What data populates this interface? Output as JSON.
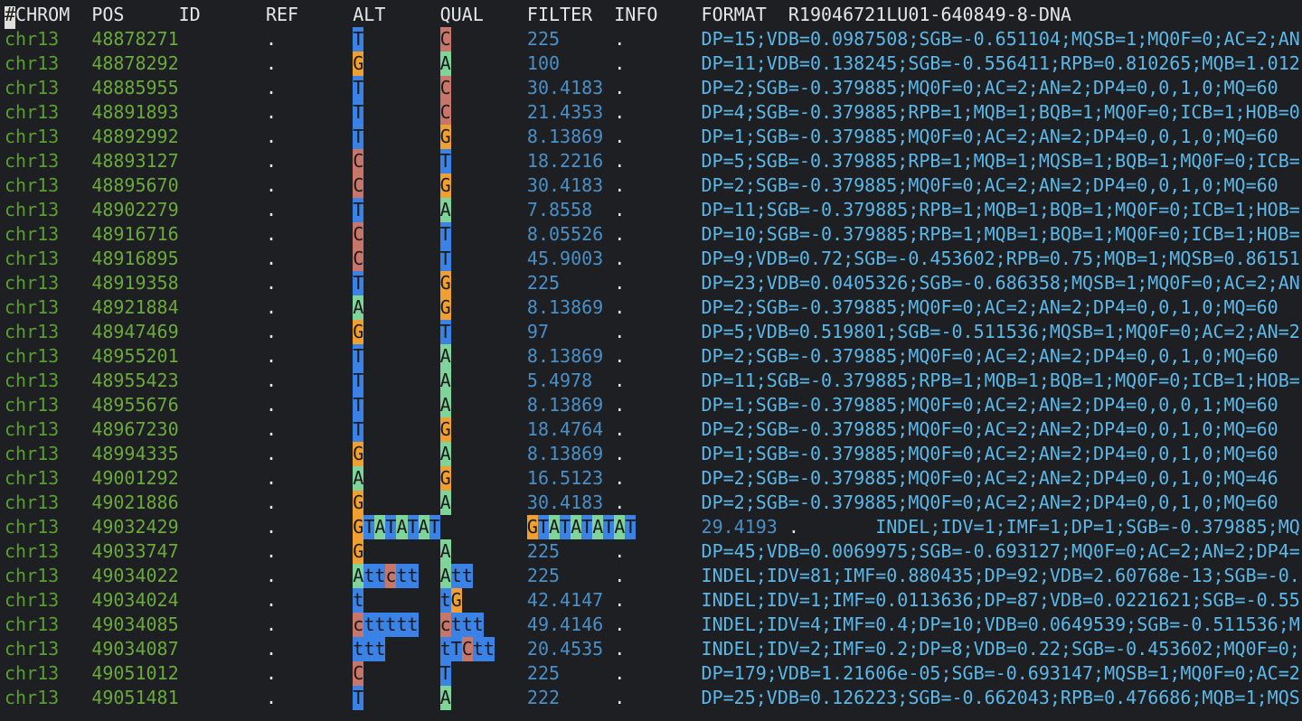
{
  "header": {
    "columns": [
      "#CHROM",
      "POS",
      "ID",
      "REF",
      "ALT",
      "QUAL",
      "FILTER",
      "INFO",
      "FORMAT",
      "R19046721LU01-640849-8-DNA"
    ]
  },
  "rows": [
    [
      "chr13",
      "48878271",
      ".",
      "T",
      "C",
      "225",
      ".",
      "DP=15;VDB=0.0987508;SGB=-0.651104;MQSB=1;MQ0F=0;AC=2;AN"
    ],
    [
      "chr13",
      "48878292",
      ".",
      "G",
      "A",
      "100",
      ".",
      "DP=11;VDB=0.138245;SGB=-0.556411;RPB=0.810265;MQB=1.012"
    ],
    [
      "chr13",
      "48885955",
      ".",
      "T",
      "C",
      "30.4183",
      ".",
      "DP=2;SGB=-0.379885;MQ0F=0;AC=2;AN=2;DP4=0,0,1,0;MQ=60"
    ],
    [
      "chr13",
      "48891893",
      ".",
      "T",
      "C",
      "21.4353",
      ".",
      "DP=4;SGB=-0.379885;RPB=1;MQB=1;BQB=1;MQ0F=0;ICB=1;HOB=0"
    ],
    [
      "chr13",
      "48892992",
      ".",
      "T",
      "G",
      "8.13869",
      ".",
      "DP=1;SGB=-0.379885;MQ0F=0;AC=2;AN=2;DP4=0,0,1,0;MQ=60"
    ],
    [
      "chr13",
      "48893127",
      ".",
      "C",
      "T",
      "18.2216",
      ".",
      "DP=5;SGB=-0.379885;RPB=1;MQB=1;MQSB=1;BQB=1;MQ0F=0;ICB="
    ],
    [
      "chr13",
      "48895670",
      ".",
      "C",
      "G",
      "30.4183",
      ".",
      "DP=2;SGB=-0.379885;MQ0F=0;AC=2;AN=2;DP4=0,0,1,0;MQ=60"
    ],
    [
      "chr13",
      "48902279",
      ".",
      "T",
      "A",
      "7.8558",
      ".",
      "DP=11;SGB=-0.379885;RPB=1;MQB=1;BQB=1;MQ0F=0;ICB=1;HOB="
    ],
    [
      "chr13",
      "48916716",
      ".",
      "C",
      "T",
      "8.05526",
      ".",
      "DP=10;SGB=-0.379885;RPB=1;MQB=1;BQB=1;MQ0F=0;ICB=1;HOB="
    ],
    [
      "chr13",
      "48916895",
      ".",
      "C",
      "T",
      "45.9003",
      ".",
      "DP=9;VDB=0.72;SGB=-0.453602;RPB=0.75;MQB=1;MQSB=0.86151"
    ],
    [
      "chr13",
      "48919358",
      ".",
      "T",
      "G",
      "225",
      ".",
      "DP=23;VDB=0.0405326;SGB=-0.686358;MQSB=1;MQ0F=0;AC=2;AN"
    ],
    [
      "chr13",
      "48921884",
      ".",
      "A",
      "G",
      "8.13869",
      ".",
      "DP=2;SGB=-0.379885;MQ0F=0;AC=2;AN=2;DP4=0,0,1,0;MQ=60"
    ],
    [
      "chr13",
      "48947469",
      ".",
      "G",
      "T",
      "97",
      ".",
      "DP=5;VDB=0.519801;SGB=-0.511536;MQSB=1;MQ0F=0;AC=2;AN=2"
    ],
    [
      "chr13",
      "48955201",
      ".",
      "T",
      "A",
      "8.13869",
      ".",
      "DP=2;SGB=-0.379885;MQ0F=0;AC=2;AN=2;DP4=0,0,1,0;MQ=60"
    ],
    [
      "chr13",
      "48955423",
      ".",
      "T",
      "A",
      "5.4978",
      ".",
      "DP=11;SGB=-0.379885;RPB=1;MQB=1;BQB=1;MQ0F=0;ICB=1;HOB="
    ],
    [
      "chr13",
      "48955676",
      ".",
      "T",
      "A",
      "8.13869",
      ".",
      "DP=1;SGB=-0.379885;MQ0F=0;AC=2;AN=2;DP4=0,0,0,1;MQ=60"
    ],
    [
      "chr13",
      "48967230",
      ".",
      "T",
      "G",
      "18.4764",
      ".",
      "DP=2;SGB=-0.379885;MQ0F=0;AC=2;AN=2;DP4=0,0,1,0;MQ=60"
    ],
    [
      "chr13",
      "48994335",
      ".",
      "G",
      "A",
      "8.13869",
      ".",
      "DP=1;SGB=-0.379885;MQ0F=0;AC=2;AN=2;DP4=0,0,1,0;MQ=60"
    ],
    [
      "chr13",
      "49001292",
      ".",
      "A",
      "G",
      "16.5123",
      ".",
      "DP=2;SGB=-0.379885;MQ0F=0;AC=2;AN=2;DP4=0,0,1,0;MQ=46"
    ],
    [
      "chr13",
      "49021886",
      ".",
      "G",
      "A",
      "30.4183",
      ".",
      "DP=2;SGB=-0.379885;MQ0F=0;AC=2;AN=2;DP4=0,0,1,0;MQ=60"
    ],
    [
      "chr13",
      "49032429",
      ".",
      "GTATATAT",
      "GTATATATAT",
      "29.4193",
      ".",
      "INDEL;IDV=1;IMF=1;DP=1;SGB=-0.379885;MQ"
    ],
    [
      "chr13",
      "49033747",
      ".",
      "G",
      "A",
      "225",
      ".",
      "DP=45;VDB=0.0069975;SGB=-0.693127;MQ0F=0;AC=2;AN=2;DP4="
    ],
    [
      "chr13",
      "49034022",
      ".",
      "Attctt",
      "Att",
      "225",
      ".",
      "INDEL;IDV=81;IMF=0.880435;DP=92;VDB=2.60768e-13;SGB=-0."
    ],
    [
      "chr13",
      "49034024",
      ".",
      "t",
      "tG",
      "42.4147",
      ".",
      "INDEL;IDV=1;IMF=0.0113636;DP=87;VDB=0.0221621;SGB=-0.55"
    ],
    [
      "chr13",
      "49034085",
      ".",
      "cttttt",
      "cttt",
      "49.4146",
      ".",
      "INDEL;IDV=4;IMF=0.4;DP=10;VDB=0.0649539;SGB=-0.511536;M"
    ],
    [
      "chr13",
      "49034087",
      ".",
      "ttt",
      "tTCtt",
      "20.4535",
      ".",
      "INDEL;IDV=2;IMF=0.2;DP=8;VDB=0.22;SGB=-0.453602;MQ0F=0;"
    ],
    [
      "chr13",
      "49051012",
      ".",
      "C",
      "T",
      "225",
      ".",
      "DP=179;VDB=1.21606e-05;SGB=-0.693147;MQSB=1;MQ0F=0;AC=2"
    ],
    [
      "chr13",
      "49051481",
      ".",
      "T",
      "A",
      "222",
      ".",
      "DP=25;VDB=0.126223;SGB=-0.662043;RPB=0.476686;MQB=1;MQS"
    ]
  ]
}
